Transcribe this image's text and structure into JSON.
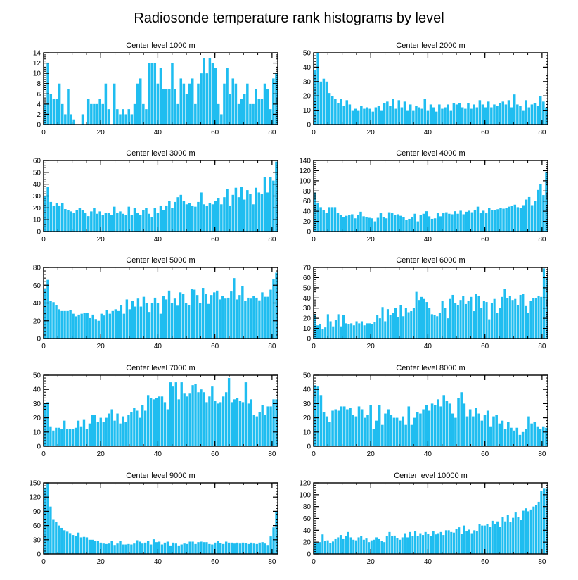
{
  "title": "Radiosonde temperature rank histograms by level",
  "bar_color": "#1fbdf0",
  "chart_data": [
    {
      "type": "bar",
      "title": "Center level 1000 m",
      "xlim": [
        0,
        82
      ],
      "xticks": [
        0,
        20,
        40,
        60,
        80
      ],
      "ylim": [
        0,
        14
      ],
      "yticks": [
        0,
        2,
        4,
        6,
        8,
        10,
        12,
        14
      ],
      "values": [
        4,
        12,
        6,
        5,
        5,
        8,
        4,
        2,
        7,
        2,
        1,
        0,
        0,
        2,
        0,
        5,
        4,
        4,
        4,
        5,
        4,
        8,
        3,
        0,
        8,
        3,
        2,
        3,
        2,
        3,
        2,
        4,
        8,
        9,
        4,
        3,
        12,
        12,
        12,
        8,
        11,
        7,
        7,
        7,
        12,
        7,
        4,
        9,
        8,
        6,
        8,
        9,
        4,
        8,
        10,
        13,
        10,
        13,
        12,
        11,
        4,
        2,
        8,
        11,
        6,
        9,
        8,
        4,
        5,
        6,
        8,
        4,
        4,
        7,
        5,
        5,
        8,
        7,
        3,
        9,
        10
      ]
    },
    {
      "type": "bar",
      "title": "Center level 2000 m",
      "xlim": [
        0,
        82
      ],
      "xticks": [
        0,
        20,
        40,
        60,
        80
      ],
      "ylim": [
        0,
        50
      ],
      "yticks": [
        0,
        10,
        20,
        30,
        40,
        50
      ],
      "values": [
        38,
        50,
        30,
        32,
        30,
        22,
        20,
        18,
        15,
        18,
        13,
        17,
        14,
        10,
        11,
        10,
        13,
        11,
        12,
        11,
        9,
        12,
        13,
        10,
        15,
        16,
        13,
        18,
        11,
        17,
        12,
        16,
        10,
        14,
        10,
        13,
        12,
        11,
        18,
        10,
        14,
        12,
        9,
        14,
        11,
        12,
        14,
        10,
        15,
        14,
        15,
        12,
        11,
        15,
        11,
        14,
        12,
        17,
        14,
        12,
        16,
        12,
        14,
        13,
        15,
        16,
        14,
        17,
        12,
        21,
        14,
        13,
        10,
        17,
        12,
        14,
        15,
        13,
        20,
        16,
        12
      ]
    },
    {
      "type": "bar",
      "title": "Center level 3000 m",
      "xlim": [
        0,
        82
      ],
      "xticks": [
        0,
        20,
        40,
        60,
        80
      ],
      "ylim": [
        0,
        60
      ],
      "yticks": [
        0,
        10,
        20,
        30,
        40,
        50,
        60
      ],
      "values": [
        30,
        38,
        25,
        22,
        24,
        22,
        24,
        19,
        18,
        17,
        16,
        18,
        20,
        18,
        16,
        13,
        17,
        20,
        15,
        17,
        14,
        16,
        16,
        14,
        21,
        16,
        17,
        15,
        14,
        21,
        14,
        20,
        16,
        14,
        18,
        20,
        15,
        12,
        20,
        16,
        22,
        18,
        22,
        26,
        20,
        25,
        29,
        31,
        26,
        23,
        24,
        22,
        21,
        25,
        33,
        23,
        22,
        24,
        23,
        26,
        28,
        23,
        29,
        36,
        22,
        31,
        37,
        29,
        38,
        27,
        35,
        32,
        23,
        37,
        33,
        32,
        46,
        33,
        46,
        43,
        59
      ]
    },
    {
      "type": "bar",
      "title": "Center level 4000 m",
      "xlim": [
        0,
        82
      ],
      "xticks": [
        0,
        20,
        40,
        60,
        80
      ],
      "ylim": [
        0,
        140
      ],
      "yticks": [
        0,
        20,
        40,
        60,
        80,
        100,
        120,
        140
      ],
      "values": [
        77,
        57,
        48,
        42,
        37,
        48,
        48,
        48,
        37,
        32,
        29,
        31,
        32,
        34,
        26,
        32,
        39,
        30,
        29,
        27,
        26,
        20,
        27,
        36,
        29,
        26,
        38,
        36,
        33,
        34,
        31,
        28,
        23,
        25,
        28,
        35,
        20,
        32,
        35,
        40,
        30,
        25,
        26,
        36,
        30,
        36,
        38,
        35,
        34,
        40,
        35,
        41,
        34,
        39,
        41,
        38,
        43,
        49,
        36,
        41,
        36,
        47,
        42,
        42,
        44,
        46,
        45,
        47,
        49,
        51,
        53,
        48,
        47,
        52,
        63,
        68,
        52,
        60,
        82,
        94,
        72,
        118
      ]
    },
    {
      "type": "bar",
      "title": "Center level 5000 m",
      "xlim": [
        0,
        82
      ],
      "xticks": [
        0,
        20,
        40,
        60,
        80
      ],
      "ylim": [
        0,
        80
      ],
      "yticks": [
        0,
        20,
        40,
        60,
        80
      ],
      "values": [
        56,
        66,
        42,
        41,
        38,
        33,
        31,
        31,
        31,
        32,
        28,
        25,
        27,
        28,
        29,
        29,
        23,
        27,
        22,
        20,
        28,
        26,
        32,
        28,
        31,
        33,
        31,
        38,
        28,
        44,
        33,
        42,
        36,
        45,
        36,
        47,
        40,
        30,
        40,
        46,
        40,
        28,
        48,
        44,
        54,
        40,
        45,
        37,
        52,
        50,
        40,
        38,
        56,
        55,
        49,
        40,
        57,
        50,
        39,
        49,
        52,
        54,
        44,
        48,
        45,
        46,
        53,
        68,
        44,
        49,
        59,
        42,
        46,
        45,
        48,
        46,
        43,
        52,
        47,
        47,
        55,
        67,
        74
      ]
    },
    {
      "type": "bar",
      "title": "Center level 6000 m",
      "xlim": [
        0,
        82
      ],
      "xticks": [
        0,
        20,
        40,
        60,
        80
      ],
      "ylim": [
        0,
        70
      ],
      "yticks": [
        0,
        10,
        20,
        30,
        40,
        50,
        60,
        70
      ],
      "values": [
        23,
        13,
        14,
        9,
        11,
        24,
        17,
        12,
        18,
        24,
        12,
        23,
        15,
        14,
        15,
        13,
        17,
        15,
        17,
        13,
        15,
        15,
        14,
        16,
        23,
        20,
        31,
        17,
        29,
        23,
        25,
        30,
        21,
        33,
        22,
        30,
        26,
        27,
        30,
        46,
        38,
        41,
        39,
        36,
        30,
        24,
        23,
        22,
        25,
        37,
        30,
        20,
        39,
        43,
        35,
        33,
        38,
        42,
        34,
        37,
        41,
        27,
        44,
        42,
        30,
        37,
        36,
        19,
        35,
        39,
        25,
        30,
        41,
        49,
        40,
        42,
        38,
        39,
        33,
        43,
        44,
        32,
        25,
        37,
        40,
        40,
        42,
        41,
        69,
        61
      ]
    },
    {
      "type": "bar",
      "title": "Center level 7000 m",
      "xlim": [
        0,
        82
      ],
      "xticks": [
        0,
        20,
        40,
        60,
        80
      ],
      "ylim": [
        0,
        50
      ],
      "yticks": [
        0,
        10,
        20,
        30,
        40,
        50
      ],
      "values": [
        30,
        31,
        14,
        11,
        13,
        13,
        12,
        18,
        12,
        12,
        12,
        13,
        18,
        14,
        19,
        12,
        16,
        22,
        22,
        17,
        20,
        17,
        20,
        23,
        26,
        18,
        23,
        16,
        21,
        17,
        22,
        24,
        27,
        25,
        20,
        29,
        25,
        36,
        34,
        33,
        34,
        35,
        35,
        31,
        26,
        45,
        42,
        45,
        33,
        45,
        37,
        35,
        37,
        43,
        44,
        38,
        40,
        38,
        31,
        35,
        42,
        32,
        30,
        31,
        35,
        38,
        48,
        31,
        33,
        34,
        32,
        31,
        45,
        30,
        33,
        22,
        21,
        24,
        29,
        22,
        28,
        28,
        33,
        33
      ]
    },
    {
      "type": "bar",
      "title": "Center level 8000 m",
      "xlim": [
        0,
        82
      ],
      "xticks": [
        0,
        20,
        40,
        60,
        80
      ],
      "ylim": [
        0,
        50
      ],
      "yticks": [
        0,
        10,
        20,
        30,
        40,
        50
      ],
      "values": [
        43,
        42,
        36,
        24,
        21,
        17,
        25,
        26,
        25,
        28,
        28,
        26,
        27,
        22,
        21,
        28,
        26,
        20,
        22,
        29,
        12,
        18,
        29,
        15,
        23,
        26,
        22,
        20,
        20,
        18,
        21,
        15,
        28,
        15,
        20,
        24,
        23,
        26,
        29,
        25,
        30,
        29,
        33,
        28,
        36,
        32,
        30,
        23,
        20,
        34,
        38,
        30,
        21,
        26,
        21,
        27,
        23,
        18,
        22,
        25,
        14,
        21,
        22,
        16,
        18,
        12,
        17,
        13,
        11,
        13,
        8,
        10,
        12,
        21,
        16,
        17,
        14,
        12,
        14,
        13
      ]
    },
    {
      "type": "bar",
      "title": "Center level 9000 m",
      "xlim": [
        0,
        82
      ],
      "xticks": [
        0,
        20,
        40,
        60,
        80
      ],
      "ylim": [
        0,
        150
      ],
      "yticks": [
        0,
        30,
        60,
        90,
        120,
        150
      ],
      "values": [
        140,
        150,
        100,
        72,
        68,
        60,
        55,
        50,
        47,
        44,
        40,
        38,
        45,
        35,
        36,
        35,
        30,
        30,
        28,
        27,
        24,
        22,
        21,
        22,
        27,
        19,
        22,
        28,
        20,
        20,
        21,
        20,
        22,
        29,
        26,
        22,
        24,
        27,
        20,
        31,
        25,
        26,
        20,
        24,
        26,
        18,
        24,
        22,
        18,
        20,
        22,
        21,
        26,
        26,
        21,
        25,
        26,
        25,
        25,
        21,
        20,
        24,
        28,
        23,
        21,
        26,
        24,
        24,
        22,
        24,
        22,
        24,
        23,
        21,
        24,
        22,
        21,
        24,
        25,
        22,
        19,
        37,
        56,
        90
      ]
    },
    {
      "type": "bar",
      "title": "Center level 10000 m",
      "xlim": [
        0,
        82
      ],
      "xticks": [
        0,
        20,
        40,
        60,
        80
      ],
      "ylim": [
        0,
        120
      ],
      "yticks": [
        0,
        20,
        40,
        60,
        80,
        100,
        120
      ],
      "values": [
        20,
        18,
        20,
        33,
        22,
        23,
        18,
        21,
        25,
        28,
        32,
        25,
        30,
        37,
        28,
        24,
        23,
        28,
        30,
        24,
        26,
        20,
        23,
        24,
        28,
        25,
        22,
        20,
        30,
        37,
        30,
        31,
        27,
        24,
        28,
        35,
        28,
        37,
        30,
        38,
        30,
        35,
        32,
        37,
        34,
        30,
        38,
        33,
        35,
        37,
        32,
        40,
        40,
        37,
        36,
        42,
        45,
        34,
        48,
        38,
        41,
        35,
        40,
        38,
        50,
        48,
        48,
        51,
        46,
        56,
        50,
        55,
        46,
        62,
        55,
        66,
        54,
        61,
        70,
        62,
        57,
        73,
        77,
        72,
        75,
        80,
        83,
        88,
        106,
        110,
        110
      ]
    }
  ]
}
